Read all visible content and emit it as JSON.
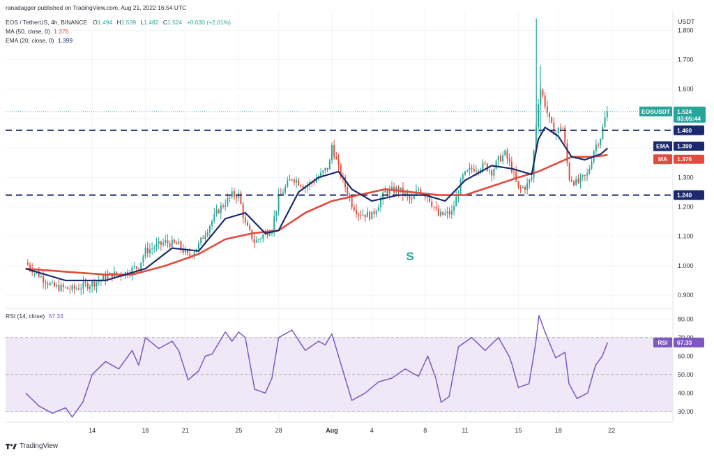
{
  "header": {
    "published": "ranadagger published on TradingView.com, Aug 21, 2022 16:54 UTC",
    "symbol": "EOS / TetherUS, 4h, BINANCE",
    "ohlc": {
      "o_label": "O",
      "o": "1.494",
      "h_label": "H",
      "h": "1.539",
      "l_label": "L",
      "l": "1.482",
      "c_label": "C",
      "c": "1.524",
      "change": "+0.030 (+2.01%)"
    },
    "ma_label": "MA (50, close, 0)",
    "ma_value": "1.376",
    "ema_label": "EMA (20, close, 0)",
    "ema_value": "1.399"
  },
  "rsi_header": {
    "label": "RSI (14, close)",
    "value": "67.33"
  },
  "axis": {
    "currency": "USDT",
    "price_ticks": [
      "1.800",
      "1.700",
      "1.600",
      "1.500",
      "1.400",
      "1.300",
      "1.200",
      "1.100",
      "1.000",
      "0.900"
    ],
    "rsi_ticks": [
      "80.00",
      "70.00",
      "60.00",
      "50.00",
      "40.00",
      "30.00"
    ],
    "date_ticks": [
      "14",
      "18",
      "21",
      "25",
      "28",
      "Aug",
      "4",
      "8",
      "11",
      "15",
      "18",
      "22"
    ]
  },
  "tags": {
    "symbol_tag": "EOSUSDT",
    "price": "1.524",
    "countdown": "03:05:44",
    "level_high": "1.460",
    "level_low": "1.240",
    "ema_tag": "EMA",
    "ema_val": "1.399",
    "ma_tag": "MA",
    "ma_val": "1.376",
    "rsi_tag": "RSI",
    "rsi_val": "67.33"
  },
  "annotation": "S",
  "logo": "TradingView",
  "colors": {
    "up": "#26a69a",
    "down": "#e04b3e",
    "ema": "#1a2a6c",
    "ma": "#e04b3e",
    "level": "#1a2a6c",
    "rsi": "#7e57c2",
    "rsi_band": "#ede7f6"
  },
  "chart_data": {
    "type": "candlestick",
    "symbol": "EOS / TetherUS",
    "timeframe": "4h",
    "exchange": "BINANCE",
    "ylim": [
      0.86,
      1.86
    ],
    "horizontal_levels": [
      1.46,
      1.24
    ],
    "x_tick_positions": [
      14,
      18,
      21,
      25,
      28,
      32,
      35,
      39,
      42,
      46,
      49,
      53
    ],
    "anchors": [
      [
        9,
        1.01
      ],
      [
        11,
        0.93
      ],
      [
        12.5,
        0.92
      ],
      [
        14,
        0.94
      ],
      [
        15.5,
        0.97
      ],
      [
        16.5,
        0.975
      ],
      [
        17.5,
        1.0
      ],
      [
        18,
        1.05
      ],
      [
        18.5,
        1.06
      ],
      [
        19.5,
        1.08
      ],
      [
        20.5,
        1.07
      ],
      [
        21.2,
        1.03
      ],
      [
        22,
        1.07
      ],
      [
        22.7,
        1.13
      ],
      [
        23.5,
        1.19
      ],
      [
        24.5,
        1.24
      ],
      [
        25,
        1.24
      ],
      [
        25.5,
        1.14
      ],
      [
        26.2,
        1.08
      ],
      [
        27,
        1.11
      ],
      [
        27.5,
        1.13
      ],
      [
        28,
        1.23
      ],
      [
        29,
        1.3
      ],
      [
        30,
        1.27
      ],
      [
        31,
        1.3
      ],
      [
        31.8,
        1.34
      ],
      [
        32,
        1.41
      ],
      [
        32.5,
        1.33
      ],
      [
        33.5,
        1.21
      ],
      [
        34,
        1.18
      ],
      [
        35,
        1.17
      ],
      [
        36,
        1.25
      ],
      [
        37,
        1.26
      ],
      [
        38,
        1.22
      ],
      [
        38.5,
        1.26
      ],
      [
        39.3,
        1.23
      ],
      [
        40,
        1.17
      ],
      [
        41,
        1.18
      ],
      [
        41.8,
        1.3
      ],
      [
        42.5,
        1.33
      ],
      [
        43.5,
        1.34
      ],
      [
        44,
        1.32
      ],
      [
        44.5,
        1.36
      ],
      [
        45,
        1.38
      ],
      [
        45.5,
        1.33
      ],
      [
        46,
        1.26
      ],
      [
        46.6,
        1.27
      ],
      [
        47,
        1.3
      ],
      [
        47.3,
        1.46
      ],
      [
        47.6,
        1.61
      ],
      [
        48,
        1.55
      ],
      [
        48.4,
        1.48
      ],
      [
        48.8,
        1.45
      ],
      [
        49.3,
        1.48
      ],
      [
        49.8,
        1.3
      ],
      [
        50.4,
        1.28
      ],
      [
        51.2,
        1.31
      ],
      [
        51.7,
        1.4
      ],
      [
        52.2,
        1.44
      ],
      [
        52.5,
        1.5
      ],
      [
        52.7,
        1.524
      ]
    ],
    "spike_highs": [
      [
        47.35,
        1.84
      ],
      [
        47.65,
        1.68
      ]
    ],
    "ema_20": [
      [
        9,
        0.99
      ],
      [
        12,
        0.95
      ],
      [
        15,
        0.95
      ],
      [
        18,
        0.99
      ],
      [
        20,
        1.06
      ],
      [
        22,
        1.05
      ],
      [
        24,
        1.16
      ],
      [
        25.5,
        1.18
      ],
      [
        27,
        1.11
      ],
      [
        28,
        1.12
      ],
      [
        29.5,
        1.25
      ],
      [
        31,
        1.3
      ],
      [
        32.5,
        1.32
      ],
      [
        33.5,
        1.26
      ],
      [
        35,
        1.22
      ],
      [
        37,
        1.24
      ],
      [
        39,
        1.24
      ],
      [
        40.5,
        1.22
      ],
      [
        42,
        1.29
      ],
      [
        44,
        1.34
      ],
      [
        45.5,
        1.33
      ],
      [
        47,
        1.31
      ],
      [
        47.5,
        1.43
      ],
      [
        48,
        1.47
      ],
      [
        49,
        1.44
      ],
      [
        50,
        1.37
      ],
      [
        51,
        1.36
      ],
      [
        52.2,
        1.38
      ],
      [
        52.7,
        1.399
      ]
    ],
    "ma_50": [
      [
        9,
        0.99
      ],
      [
        12,
        0.98
      ],
      [
        15,
        0.97
      ],
      [
        17,
        0.97
      ],
      [
        19.5,
        1.0
      ],
      [
        22,
        1.04
      ],
      [
        24,
        1.09
      ],
      [
        26,
        1.11
      ],
      [
        28,
        1.12
      ],
      [
        30,
        1.18
      ],
      [
        32,
        1.22
      ],
      [
        34,
        1.24
      ],
      [
        36,
        1.26
      ],
      [
        38,
        1.25
      ],
      [
        40,
        1.24
      ],
      [
        42,
        1.24
      ],
      [
        44,
        1.27
      ],
      [
        46,
        1.3
      ],
      [
        47.5,
        1.32
      ],
      [
        48.5,
        1.34
      ],
      [
        50,
        1.37
      ],
      [
        51.5,
        1.37
      ],
      [
        52.7,
        1.376
      ]
    ],
    "rsi": {
      "ylim": [
        25,
        85
      ],
      "band": [
        30,
        70
      ],
      "midline": 50,
      "last": 67.33,
      "points": [
        [
          9,
          40
        ],
        [
          10,
          33
        ],
        [
          11,
          29
        ],
        [
          12,
          32
        ],
        [
          12.5,
          27
        ],
        [
          13.3,
          35
        ],
        [
          14,
          50
        ],
        [
          15,
          57
        ],
        [
          16,
          53
        ],
        [
          17,
          63
        ],
        [
          17.5,
          55
        ],
        [
          18,
          70
        ],
        [
          19,
          64
        ],
        [
          20,
          68
        ],
        [
          20.5,
          63
        ],
        [
          21.2,
          47
        ],
        [
          22,
          52
        ],
        [
          22.5,
          60
        ],
        [
          23,
          61
        ],
        [
          24,
          73
        ],
        [
          24.5,
          68
        ],
        [
          25,
          73
        ],
        [
          25.5,
          70
        ],
        [
          26.2,
          42
        ],
        [
          27,
          40
        ],
        [
          27.5,
          48
        ],
        [
          28,
          70
        ],
        [
          29,
          74
        ],
        [
          30,
          63
        ],
        [
          31,
          68
        ],
        [
          31.5,
          66
        ],
        [
          32,
          72
        ],
        [
          32.5,
          60
        ],
        [
          33.5,
          36
        ],
        [
          34.5,
          40
        ],
        [
          35.5,
          46
        ],
        [
          36.5,
          48
        ],
        [
          37.5,
          53
        ],
        [
          38.5,
          49
        ],
        [
          39.2,
          60
        ],
        [
          39.8,
          48
        ],
        [
          40.2,
          35
        ],
        [
          40.8,
          38
        ],
        [
          41.5,
          65
        ],
        [
          42.5,
          70
        ],
        [
          43.5,
          63
        ],
        [
          44.5,
          70
        ],
        [
          45.3,
          60
        ],
        [
          45.5,
          56
        ],
        [
          46,
          43
        ],
        [
          46.8,
          45
        ],
        [
          47.3,
          67
        ],
        [
          47.55,
          82
        ],
        [
          48,
          73
        ],
        [
          48.8,
          59
        ],
        [
          49.5,
          62
        ],
        [
          49.8,
          45
        ],
        [
          50.4,
          37
        ],
        [
          51.2,
          40
        ],
        [
          51.8,
          55
        ],
        [
          52.3,
          60
        ],
        [
          52.7,
          67.33
        ]
      ]
    }
  }
}
